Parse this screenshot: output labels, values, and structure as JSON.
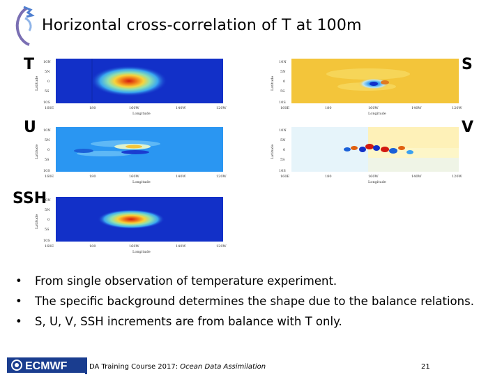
{
  "slide": {
    "title": "Horizontal cross-correlation of T at 100m"
  },
  "panels": {
    "t": {
      "letter": "T"
    },
    "s": {
      "letter": "S"
    },
    "u": {
      "letter": "U"
    },
    "v": {
      "letter": "V"
    },
    "ssh": {
      "letter": "SSH"
    }
  },
  "map_axes": {
    "lat_ticks": [
      "10N",
      "5N",
      "0",
      "5S",
      "10S"
    ],
    "lon_ticks": [
      "160E",
      "180",
      "160W",
      "140W",
      "120W"
    ],
    "xlabel": "Longitude",
    "ylabel": "Latitude"
  },
  "bullets": [
    "From single observation of temperature experiment.",
    "The specific background determines the shape due to the balance relations.",
    "S, U, V, SSH increments are from balance with T only."
  ],
  "footer": {
    "logo_text": "ECMWF",
    "course": "DA Training Course 2017: ",
    "topic": "Ocean Data Assimilation",
    "page": "21"
  },
  "colors": {
    "deep_blue": "#1230c8",
    "sky_blue": "#2a96f2",
    "yellow": "#f3c53a",
    "pale": "#fdf6c8",
    "red": "#d21a10",
    "footer_blue": "#1a3d8f"
  }
}
